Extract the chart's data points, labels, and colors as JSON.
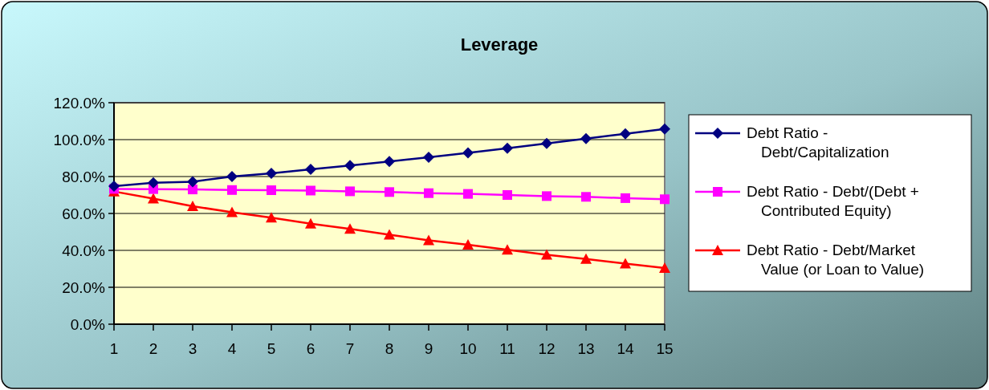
{
  "chart_data": {
    "type": "line",
    "title": "Leverage",
    "x": [
      1,
      2,
      3,
      4,
      5,
      6,
      7,
      8,
      9,
      10,
      11,
      12,
      13,
      14,
      15
    ],
    "xlim": [
      1,
      15
    ],
    "xticks": [
      1,
      2,
      3,
      4,
      5,
      6,
      7,
      8,
      9,
      10,
      11,
      12,
      13,
      14,
      15
    ],
    "ylim": [
      0,
      120
    ],
    "yticks": [
      {
        "value": 0,
        "label": "0.0%"
      },
      {
        "value": 20,
        "label": "20.0%"
      },
      {
        "value": 40,
        "label": "40.0%"
      },
      {
        "value": 60,
        "label": "60.0%"
      },
      {
        "value": 80,
        "label": "80.0%"
      },
      {
        "value": 100,
        "label": "100.0%"
      },
      {
        "value": 120,
        "label": "120.0%"
      }
    ],
    "grid": "y",
    "legend": "right",
    "series": [
      {
        "name": "Debt Ratio - Debt/Capitalization",
        "color": "#000080",
        "marker": "diamond",
        "values": [
          74.8,
          76.6,
          77.2,
          80.0,
          81.7,
          83.9,
          86.0,
          88.2,
          90.4,
          92.8,
          95.3,
          97.9,
          100.5,
          103.2,
          105.8
        ]
      },
      {
        "name": "Debt Ratio - Debt/(Debt + Contributed Equity)",
        "color": "#ff00ff",
        "marker": "square",
        "values": [
          73.3,
          73.2,
          73.0,
          72.7,
          72.6,
          72.4,
          72.0,
          71.6,
          71.0,
          70.6,
          70.0,
          69.4,
          69.0,
          68.3,
          67.7
        ]
      },
      {
        "name": "Debt Ratio - Debt/Market Value (or Loan to Value)",
        "color": "#ff0000",
        "marker": "triangle",
        "values": [
          71.9,
          68.0,
          63.9,
          60.7,
          57.7,
          54.5,
          51.6,
          48.5,
          45.4,
          43.0,
          40.3,
          37.6,
          35.3,
          32.8,
          30.4
        ]
      }
    ]
  }
}
